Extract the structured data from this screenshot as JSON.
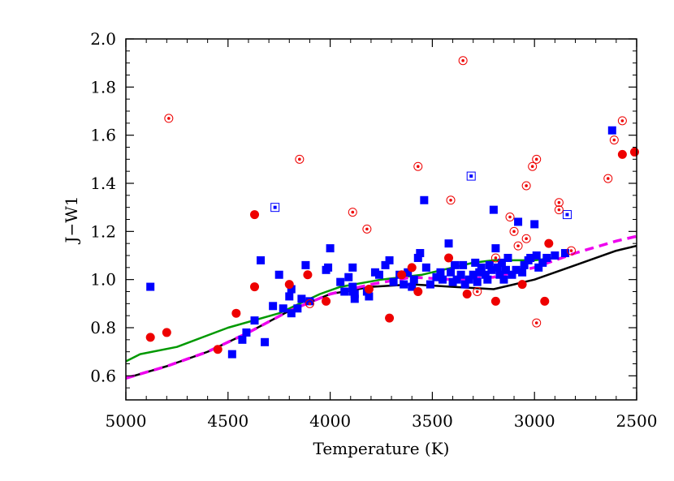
{
  "chart_data": {
    "type": "scatter",
    "title": "",
    "xlabel": "Temperature (K)",
    "ylabel": "J−W1",
    "xlim": [
      5000,
      2500
    ],
    "ylim": [
      0.5,
      2.0
    ],
    "x_reversed": true,
    "grid": false,
    "legend": "none",
    "xticks": [
      5000,
      4500,
      4000,
      3500,
      3000,
      2500
    ],
    "xtick_labels": [
      "5000",
      "4500",
      "4000",
      "3500",
      "3000",
      "2500"
    ],
    "yticks": [
      0.6,
      0.8,
      1.0,
      1.2,
      1.4,
      1.6,
      1.8,
      2.0
    ],
    "ytick_labels": [
      "0.6",
      "0.8",
      "1.0",
      "1.2",
      "1.4",
      "1.6",
      "1.8",
      "2.0"
    ],
    "colors": {
      "blue": "#0000ff",
      "red": "#ee0000",
      "green": "#009900",
      "black": "#000000",
      "magenta": "#ee00ee"
    },
    "series": [
      {
        "marker": "square-filled",
        "color": "blue",
        "points": [
          [
            4880,
            0.97
          ],
          [
            4480,
            0.69
          ],
          [
            4430,
            0.75
          ],
          [
            4410,
            0.78
          ],
          [
            4370,
            0.83
          ],
          [
            4340,
            1.08
          ],
          [
            4320,
            0.74
          ],
          [
            4280,
            0.89
          ],
          [
            4250,
            1.02
          ],
          [
            4230,
            0.88
          ],
          [
            4200,
            0.93
          ],
          [
            4190,
            0.96
          ],
          [
            4190,
            0.86
          ],
          [
            4160,
            0.88
          ],
          [
            4140,
            0.92
          ],
          [
            4120,
            1.06
          ],
          [
            4100,
            0.91
          ],
          [
            4020,
            1.04
          ],
          [
            4010,
            1.05
          ],
          [
            4000,
            1.13
          ],
          [
            3950,
            0.99
          ],
          [
            3930,
            0.95
          ],
          [
            3910,
            1.01
          ],
          [
            3890,
            1.05
          ],
          [
            3890,
            0.97
          ],
          [
            3890,
            0.95
          ],
          [
            3880,
            0.94
          ],
          [
            3880,
            0.92
          ],
          [
            3820,
            0.95
          ],
          [
            3810,
            0.93
          ],
          [
            3780,
            1.03
          ],
          [
            3760,
            1.02
          ],
          [
            3730,
            1.06
          ],
          [
            3710,
            1.08
          ],
          [
            3690,
            0.99
          ],
          [
            3660,
            1.02
          ],
          [
            3640,
            0.98
          ],
          [
            3620,
            1.03
          ],
          [
            3600,
            0.97
          ],
          [
            3590,
            1.0
          ],
          [
            3570,
            1.09
          ],
          [
            3560,
            1.11
          ],
          [
            3540,
            1.33
          ],
          [
            3530,
            1.05
          ],
          [
            3510,
            0.98
          ],
          [
            3480,
            1.01
          ],
          [
            3460,
            1.03
          ],
          [
            3450,
            1.0
          ],
          [
            3420,
            1.15
          ],
          [
            3410,
            1.03
          ],
          [
            3400,
            0.99
          ],
          [
            3390,
            1.06
          ],
          [
            3380,
            1.0
          ],
          [
            3360,
            1.02
          ],
          [
            3350,
            1.06
          ],
          [
            3340,
            0.98
          ],
          [
            3320,
            1.0
          ],
          [
            3300,
            1.02
          ],
          [
            3290,
            1.07
          ],
          [
            3280,
            0.99
          ],
          [
            3270,
            1.03
          ],
          [
            3260,
            1.05
          ],
          [
            3240,
            1.02
          ],
          [
            3230,
            1.0
          ],
          [
            3220,
            1.06
          ],
          [
            3210,
            1.04
          ],
          [
            3200,
            1.29
          ],
          [
            3190,
            1.13
          ],
          [
            3180,
            1.05
          ],
          [
            3170,
            1.02
          ],
          [
            3160,
            1.07
          ],
          [
            3150,
            1.0
          ],
          [
            3140,
            1.04
          ],
          [
            3130,
            1.09
          ],
          [
            3110,
            1.02
          ],
          [
            3090,
            1.04
          ],
          [
            3080,
            1.24
          ],
          [
            3060,
            1.03
          ],
          [
            3050,
            1.06
          ],
          [
            3030,
            1.08
          ],
          [
            3020,
            1.09
          ],
          [
            3000,
            1.23
          ],
          [
            2990,
            1.1
          ],
          [
            2980,
            1.05
          ],
          [
            2960,
            1.07
          ],
          [
            2940,
            1.09
          ],
          [
            2900,
            1.1
          ],
          [
            2850,
            1.11
          ],
          [
            2620,
            1.62
          ]
        ]
      },
      {
        "marker": "square-open",
        "color": "blue",
        "points": [
          [
            4270,
            1.3
          ],
          [
            3310,
            1.43
          ],
          [
            2840,
            1.27
          ]
        ]
      },
      {
        "marker": "circle-filled",
        "color": "red",
        "points": [
          [
            4880,
            0.76
          ],
          [
            4800,
            0.78
          ],
          [
            4550,
            0.71
          ],
          [
            4460,
            0.86
          ],
          [
            4370,
            1.27
          ],
          [
            4370,
            0.97
          ],
          [
            4200,
            0.98
          ],
          [
            4110,
            1.02
          ],
          [
            4020,
            0.91
          ],
          [
            3810,
            0.96
          ],
          [
            3710,
            0.84
          ],
          [
            3650,
            1.02
          ],
          [
            3600,
            1.05
          ],
          [
            3570,
            0.95
          ],
          [
            3420,
            1.09
          ],
          [
            3330,
            0.94
          ],
          [
            3190,
            0.91
          ],
          [
            3060,
            0.98
          ],
          [
            2950,
            0.91
          ],
          [
            2930,
            1.15
          ],
          [
            2570,
            1.52
          ],
          [
            2510,
            1.53
          ]
        ]
      },
      {
        "marker": "circle-open",
        "color": "red",
        "points": [
          [
            4790,
            1.67
          ],
          [
            4150,
            1.5
          ],
          [
            4100,
            0.9
          ],
          [
            3890,
            1.28
          ],
          [
            3820,
            1.21
          ],
          [
            3570,
            1.47
          ],
          [
            3410,
            1.33
          ],
          [
            3350,
            1.91
          ],
          [
            3280,
            0.95
          ],
          [
            3190,
            1.09
          ],
          [
            3120,
            1.26
          ],
          [
            3100,
            1.2
          ],
          [
            3080,
            1.14
          ],
          [
            3040,
            1.17
          ],
          [
            3040,
            1.39
          ],
          [
            3010,
            1.47
          ],
          [
            2990,
            1.5
          ],
          [
            2990,
            0.82
          ],
          [
            2880,
            1.29
          ],
          [
            2880,
            1.32
          ],
          [
            2820,
            1.12
          ],
          [
            2640,
            1.42
          ],
          [
            2610,
            1.58
          ],
          [
            2570,
            1.66
          ]
        ]
      }
    ],
    "lines": [
      {
        "color": "green",
        "style": "solid",
        "points": [
          [
            5000,
            0.66
          ],
          [
            4930,
            0.69
          ],
          [
            4750,
            0.72
          ],
          [
            4500,
            0.8
          ],
          [
            4250,
            0.86
          ],
          [
            4050,
            0.94
          ],
          [
            3950,
            0.97
          ],
          [
            3750,
            1.0
          ],
          [
            3550,
            1.02
          ],
          [
            3400,
            1.05
          ],
          [
            3300,
            1.07
          ],
          [
            3200,
            1.08
          ],
          [
            3000,
            1.08
          ],
          [
            2900,
            1.09
          ]
        ]
      },
      {
        "color": "black",
        "style": "solid",
        "points": [
          [
            5000,
            0.59
          ],
          [
            4800,
            0.64
          ],
          [
            4600,
            0.7
          ],
          [
            4400,
            0.78
          ],
          [
            4200,
            0.87
          ],
          [
            4000,
            0.94
          ],
          [
            3800,
            0.97
          ],
          [
            3600,
            0.98
          ],
          [
            3400,
            0.97
          ],
          [
            3200,
            0.96
          ],
          [
            3000,
            1.0
          ],
          [
            2800,
            1.06
          ],
          [
            2600,
            1.12
          ],
          [
            2500,
            1.14
          ]
        ]
      },
      {
        "color": "magenta",
        "style": "dashed",
        "points": [
          [
            5000,
            0.59
          ],
          [
            4800,
            0.64
          ],
          [
            4600,
            0.7
          ],
          [
            4400,
            0.78
          ],
          [
            4200,
            0.87
          ],
          [
            4000,
            0.94
          ],
          [
            3800,
            0.98
          ],
          [
            3600,
            1.01
          ],
          [
            3400,
            1.0
          ],
          [
            3200,
            1.01
          ],
          [
            3000,
            1.05
          ],
          [
            2800,
            1.11
          ],
          [
            2600,
            1.16
          ],
          [
            2500,
            1.18
          ]
        ]
      }
    ]
  }
}
